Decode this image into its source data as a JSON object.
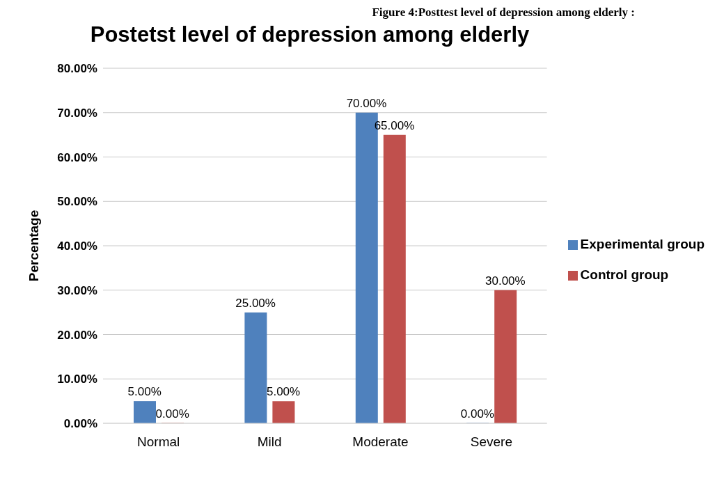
{
  "chart_data": {
    "type": "bar",
    "title": "Postetst level of depression among elderly",
    "ylabel": "Percentage",
    "annotations": [
      "Figure 4:Posttest level of depression among elderly :"
    ],
    "categories": [
      "Normal",
      "Mild",
      "Moderate",
      "Severe"
    ],
    "series": [
      {
        "name": "Experimental group",
        "color": "#4f81bd",
        "values": [
          5,
          25,
          70,
          0
        ],
        "value_labels": [
          "5.00%",
          "25.00%",
          "70.00%",
          "0.00%"
        ]
      },
      {
        "name": "Control group",
        "color": "#c0504d",
        "values": [
          0,
          5,
          65,
          30
        ],
        "value_labels": [
          "0.00%",
          "5.00%",
          "65.00%",
          "30.00%"
        ]
      }
    ],
    "ylim": [
      0,
      80
    ],
    "yticks": [
      {
        "value": 0,
        "label": "0.00%"
      },
      {
        "value": 10,
        "label": "10.00%"
      },
      {
        "value": 20,
        "label": "20.00%"
      },
      {
        "value": 30,
        "label": "30.00%"
      },
      {
        "value": 40,
        "label": "40.00%"
      },
      {
        "value": 50,
        "label": "50.00%"
      },
      {
        "value": 60,
        "label": "60.00%"
      },
      {
        "value": 70,
        "label": "70.00%"
      },
      {
        "value": 80,
        "label": "80.00%"
      }
    ],
    "grid": "y",
    "legend": "right"
  }
}
